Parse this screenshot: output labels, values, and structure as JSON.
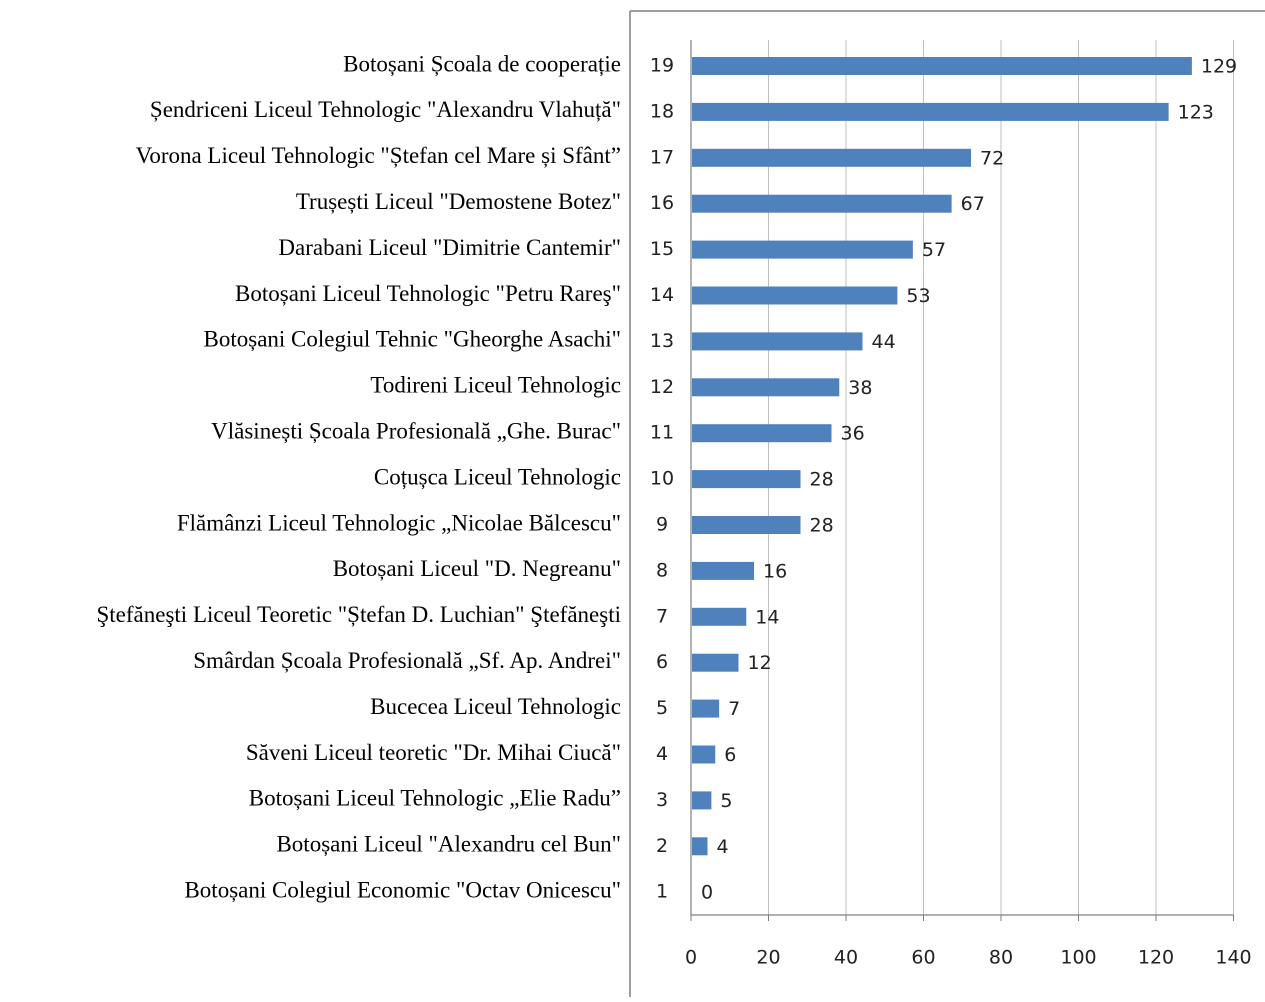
{
  "chart_data": {
    "type": "bar",
    "orientation": "horizontal",
    "title": "",
    "xlabel": "",
    "ylabel": "",
    "xlim": [
      0,
      140
    ],
    "xticks": [
      "0",
      "20",
      "40",
      "60",
      "80",
      "100",
      "120",
      "140"
    ],
    "grid": "vertical",
    "legend": "none",
    "bar_color": "#4F81BD",
    "categories": [
      "Botoșani Școala de cooperație",
      "Șendriceni Liceul Tehnologic \"Alexandru Vlahuță\"",
      "Vorona Liceul Tehnologic \"Ștefan cel Mare și Sfânt”",
      "Trușești Liceul \"Demostene Botez\"",
      "Darabani Liceul \"Dimitrie Cantemir\"",
      "Botoșani Liceul Tehnologic \"Petru Rareş\"",
      "Botoșani Colegiul Tehnic \"Gheorghe Asachi\"",
      "Todireni Liceul Tehnologic",
      "Vlăsinești Școala Profesională „Ghe. Burac\"",
      "Coțușca Liceul Tehnologic",
      "Flămânzi Liceul Tehnologic „Nicolae Bălcescu\"",
      "Botoșani Liceul \"D. Negreanu\"",
      "Ştefăneşti Liceul Teoretic \"Ștefan D. Luchian\" Ştefăneşti",
      "Smârdan Școala Profesională „Sf. Ap. Andrei\"",
      "Bucecea Liceul Tehnologic",
      "Săveni Liceul teoretic \"Dr. Mihai Ciucă\"",
      "Botoșani Liceul Tehnologic „Elie Radu”",
      "Botoșani Liceul \"Alexandru cel Bun\"",
      "Botoșani Colegiul Economic \"Octav Onicescu\""
    ],
    "ranks": [
      "19",
      "18",
      "17",
      "16",
      "15",
      "14",
      "13",
      "12",
      "11",
      "10",
      "9",
      "8",
      "7",
      "6",
      "5",
      "4",
      "3",
      "2",
      "1"
    ],
    "values": [
      129,
      123,
      72,
      67,
      57,
      53,
      44,
      38,
      36,
      28,
      28,
      16,
      14,
      12,
      7,
      6,
      5,
      4,
      0
    ]
  }
}
